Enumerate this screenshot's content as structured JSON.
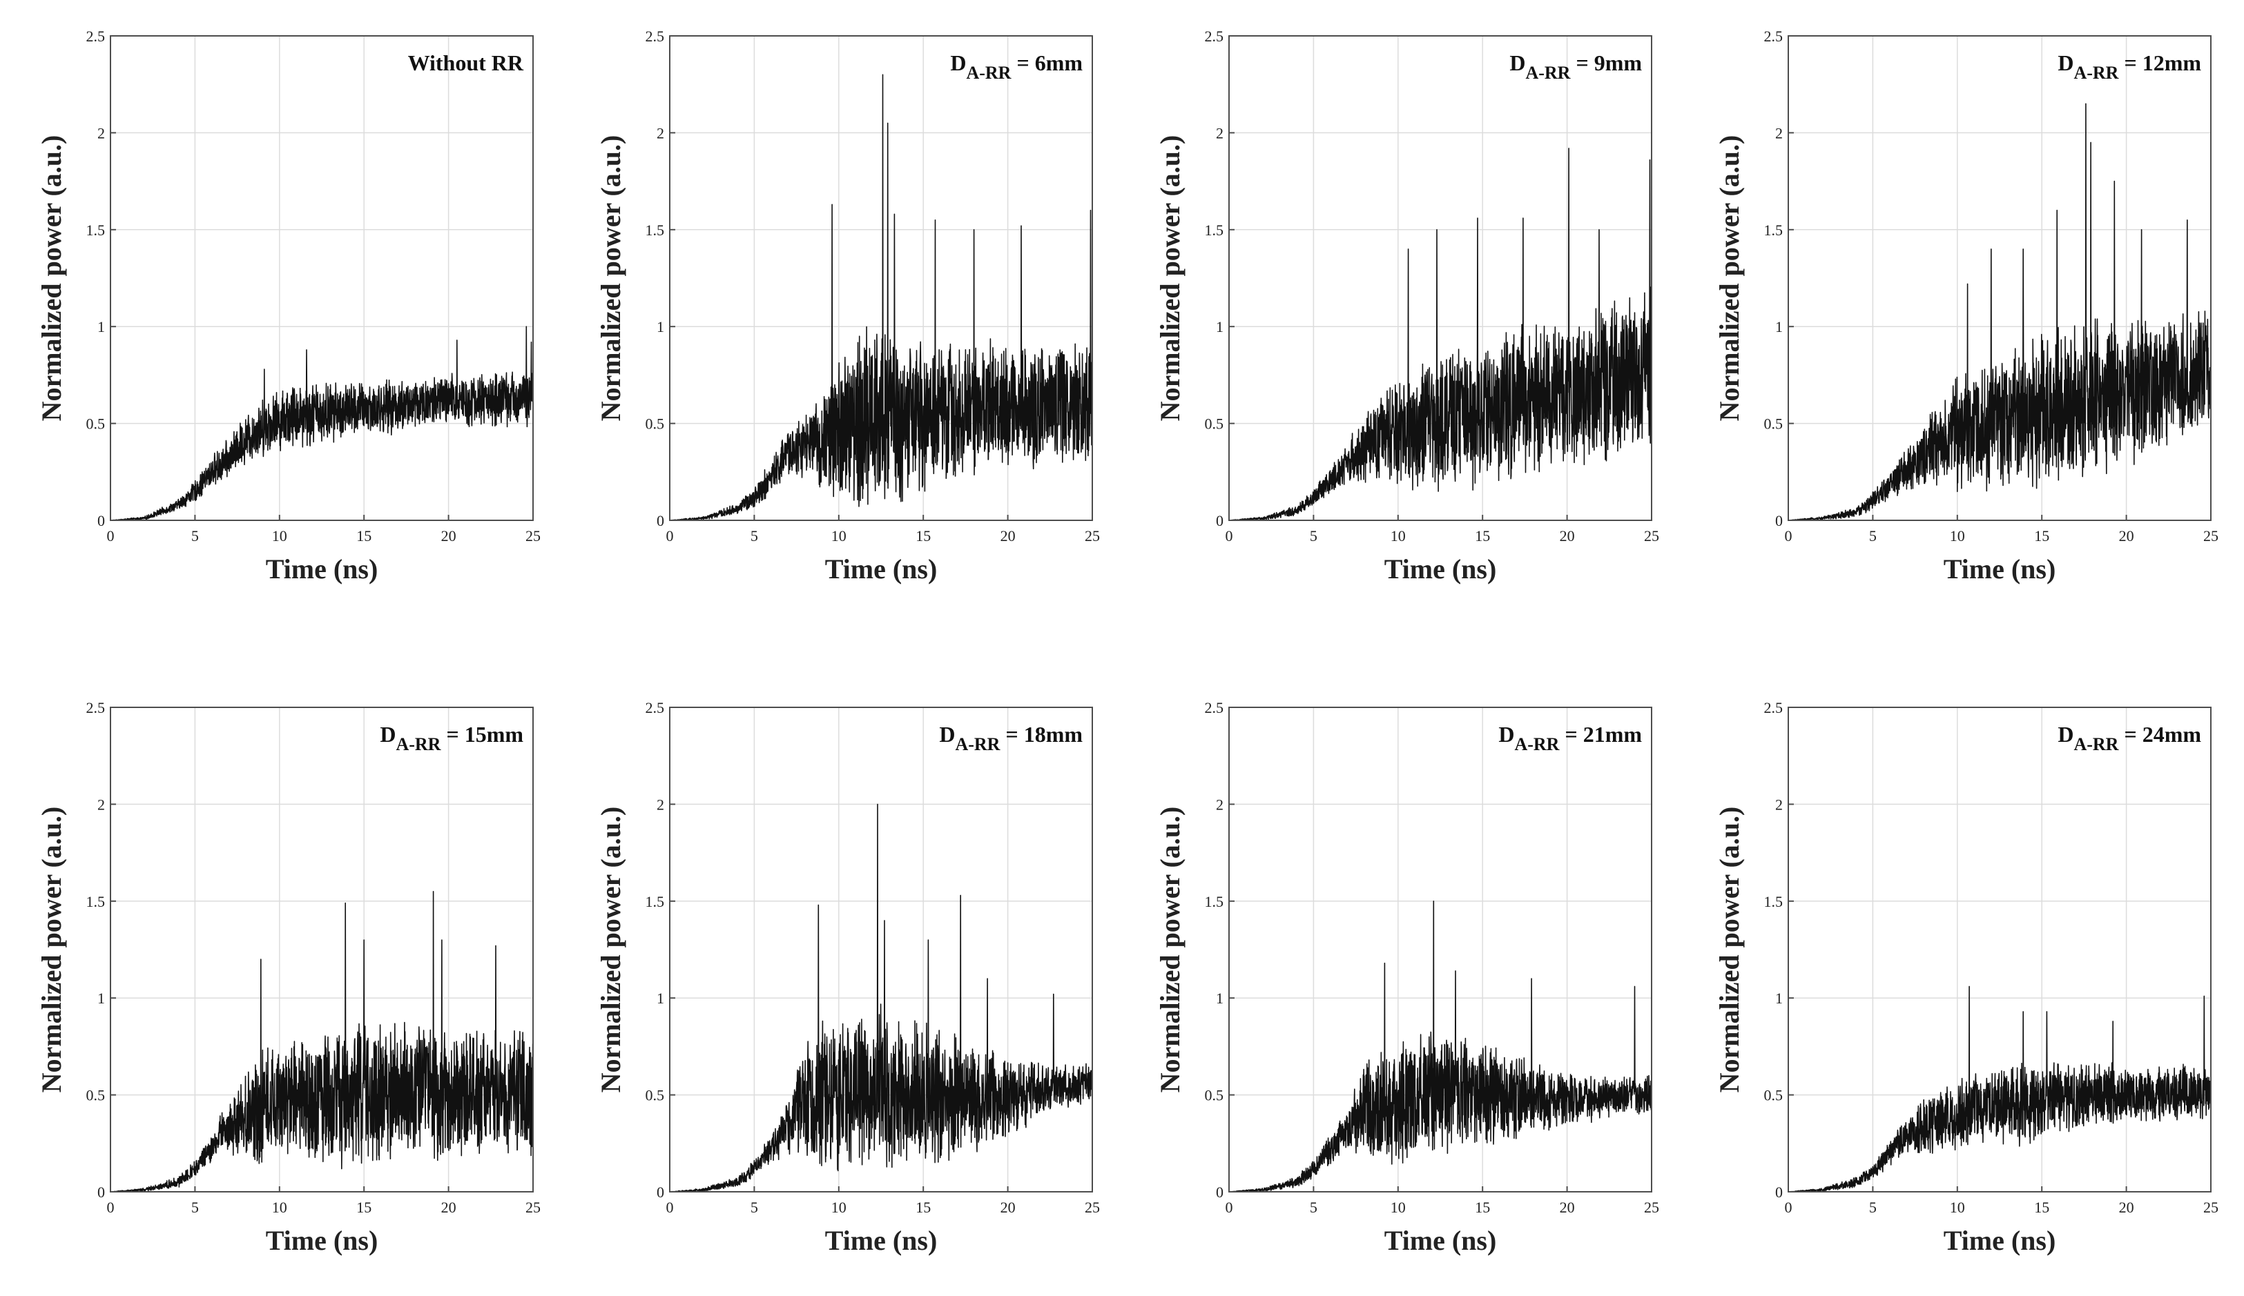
{
  "figure": {
    "panel_count": 8,
    "rows": 2,
    "cols": 4
  },
  "chart_data": [
    {
      "type": "line",
      "id": "p1",
      "label_main": "Without RR",
      "label_sub": "",
      "label_suffix": "",
      "xlabel": "Time (ns)",
      "ylabel": "Normalized power (a.u.)",
      "xlim": [
        0,
        25
      ],
      "ylim": [
        0,
        2.5
      ],
      "xticks": [
        0,
        5,
        10,
        15,
        20,
        25
      ],
      "yticks": [
        0,
        0.5,
        1,
        1.5,
        2,
        2.5
      ],
      "ytick_labels": [
        "0",
        "0.5",
        "1",
        "1.5",
        "2",
        "2.5"
      ],
      "series": [
        {
          "name": "Normalized power",
          "envelope": {
            "t": [
              0,
              2,
              4,
              5,
              6,
              7,
              8,
              9,
              10,
              11,
              12,
              14,
              16,
              18,
              20,
              22,
              24,
              25
            ],
            "mean": [
              0,
              0.01,
              0.08,
              0.15,
              0.25,
              0.32,
              0.42,
              0.48,
              0.52,
              0.55,
              0.55,
              0.57,
              0.58,
              0.6,
              0.62,
              0.62,
              0.63,
              0.63
            ],
            "spread": [
              0,
              0.01,
              0.03,
              0.06,
              0.09,
              0.11,
              0.14,
              0.16,
              0.17,
              0.19,
              0.18,
              0.16,
              0.15,
              0.15,
              0.15,
              0.15,
              0.16,
              0.16
            ]
          },
          "peaks": [
            [
              9.1,
              0.78
            ],
            [
              11.6,
              0.88
            ],
            [
              20.5,
              0.93
            ],
            [
              24.6,
              1.0
            ],
            [
              24.9,
              0.92
            ]
          ]
        }
      ]
    },
    {
      "type": "line",
      "id": "p2",
      "label_main": "D",
      "label_sub": "A-RR",
      "label_suffix": " = 6mm",
      "xlabel": "Time (ns)",
      "ylabel": "Normalized power (a.u.)",
      "xlim": [
        0,
        25
      ],
      "ylim": [
        0,
        2.5
      ],
      "xticks": [
        0,
        5,
        10,
        15,
        20,
        25
      ],
      "yticks": [
        0,
        0.5,
        1,
        1.5,
        2,
        2.5
      ],
      "ytick_labels": [
        "0",
        "0.5",
        "1",
        "1.5",
        "2",
        "2.5"
      ],
      "series": [
        {
          "name": "Normalized power",
          "envelope": {
            "t": [
              0,
              2,
              4,
              5,
              6,
              7,
              8,
              9,
              10,
              12,
              14,
              16,
              18,
              20,
              22,
              24,
              25
            ],
            "mean": [
              0,
              0.01,
              0.06,
              0.12,
              0.22,
              0.35,
              0.38,
              0.4,
              0.45,
              0.55,
              0.5,
              0.55,
              0.58,
              0.6,
              0.6,
              0.62,
              0.65
            ],
            "spread": [
              0,
              0.01,
              0.03,
              0.06,
              0.1,
              0.14,
              0.18,
              0.25,
              0.45,
              0.55,
              0.45,
              0.4,
              0.38,
              0.36,
              0.35,
              0.36,
              0.38
            ]
          },
          "peaks": [
            [
              9.6,
              1.63
            ],
            [
              12.6,
              2.3
            ],
            [
              12.9,
              2.05
            ],
            [
              13.3,
              1.58
            ],
            [
              15.7,
              1.55
            ],
            [
              18.0,
              1.5
            ],
            [
              20.8,
              1.52
            ],
            [
              24.9,
              1.6
            ]
          ]
        }
      ]
    },
    {
      "type": "line",
      "id": "p3",
      "label_main": "D",
      "label_sub": "A-RR",
      "label_suffix": " = 9mm",
      "xlabel": "Time (ns)",
      "ylabel": "Normalized power (a.u.)",
      "xlim": [
        0,
        25
      ],
      "ylim": [
        0,
        2.5
      ],
      "xticks": [
        0,
        5,
        10,
        15,
        20,
        25
      ],
      "yticks": [
        0,
        0.5,
        1,
        1.5,
        2,
        2.5
      ],
      "ytick_labels": [
        "0",
        "0.5",
        "1",
        "1.5",
        "2",
        "2.5"
      ],
      "series": [
        {
          "name": "Normalized power",
          "envelope": {
            "t": [
              0,
              2,
              4,
              5,
              6,
              7,
              8,
              9,
              10,
              12,
              14,
              16,
              18,
              20,
              22,
              24,
              25
            ],
            "mean": [
              0,
              0.01,
              0.05,
              0.12,
              0.2,
              0.3,
              0.36,
              0.42,
              0.45,
              0.5,
              0.55,
              0.58,
              0.62,
              0.66,
              0.7,
              0.75,
              0.8
            ],
            "spread": [
              0,
              0.01,
              0.03,
              0.05,
              0.08,
              0.12,
              0.18,
              0.25,
              0.32,
              0.38,
              0.4,
              0.42,
              0.42,
              0.42,
              0.42,
              0.44,
              0.46
            ]
          },
          "peaks": [
            [
              10.6,
              1.4
            ],
            [
              12.3,
              1.5
            ],
            [
              14.7,
              1.56
            ],
            [
              17.4,
              1.56
            ],
            [
              20.1,
              1.92
            ],
            [
              21.9,
              1.5
            ],
            [
              24.9,
              1.86
            ]
          ]
        }
      ]
    },
    {
      "type": "line",
      "id": "p4",
      "label_main": "D",
      "label_sub": "A-RR",
      "label_suffix": " = 12mm",
      "xlabel": "Time (ns)",
      "ylabel": "Normalized power (a.u.)",
      "xlim": [
        0,
        25
      ],
      "ylim": [
        0,
        2.5
      ],
      "xticks": [
        0,
        5,
        10,
        15,
        20,
        25
      ],
      "yticks": [
        0,
        0.5,
        1,
        1.5,
        2,
        2.5
      ],
      "ytick_labels": [
        "0",
        "0.5",
        "1",
        "1.5",
        "2",
        "2.5"
      ],
      "series": [
        {
          "name": "Normalized power",
          "envelope": {
            "t": [
              0,
              2,
              4,
              5,
              6,
              7,
              8,
              9,
              10,
              12,
              14,
              16,
              18,
              20,
              22,
              24,
              25
            ],
            "mean": [
              0,
              0.01,
              0.04,
              0.1,
              0.18,
              0.26,
              0.33,
              0.4,
              0.45,
              0.5,
              0.55,
              0.58,
              0.62,
              0.66,
              0.7,
              0.74,
              0.78
            ],
            "spread": [
              0,
              0.01,
              0.03,
              0.05,
              0.08,
              0.12,
              0.18,
              0.25,
              0.32,
              0.38,
              0.42,
              0.44,
              0.44,
              0.4,
              0.38,
              0.36,
              0.36
            ]
          },
          "peaks": [
            [
              10.6,
              1.22
            ],
            [
              12.0,
              1.4
            ],
            [
              13.9,
              1.4
            ],
            [
              15.9,
              1.6
            ],
            [
              17.6,
              2.15
            ],
            [
              17.9,
              1.95
            ],
            [
              19.3,
              1.75
            ],
            [
              20.9,
              1.5
            ],
            [
              23.6,
              1.55
            ]
          ]
        }
      ]
    },
    {
      "type": "line",
      "id": "p5",
      "label_main": "D",
      "label_sub": "A-RR",
      "label_suffix": " = 15mm",
      "xlabel": "Time (ns)",
      "ylabel": "Normalized power (a.u.)",
      "xlim": [
        0,
        25
      ],
      "ylim": [
        0,
        2.5
      ],
      "xticks": [
        0,
        5,
        10,
        15,
        20,
        25
      ],
      "yticks": [
        0,
        0.5,
        1,
        1.5,
        2,
        2.5
      ],
      "ytick_labels": [
        "0",
        "0.5",
        "1",
        "1.5",
        "2",
        "2.5"
      ],
      "series": [
        {
          "name": "Normalized power",
          "envelope": {
            "t": [
              0,
              2,
              4,
              5,
              6,
              6.5,
              8,
              9,
              10,
              12,
              14,
              16,
              18,
              20,
              22,
              24,
              25
            ],
            "mean": [
              0,
              0.01,
              0.05,
              0.12,
              0.22,
              0.3,
              0.38,
              0.45,
              0.45,
              0.48,
              0.5,
              0.5,
              0.52,
              0.5,
              0.5,
              0.5,
              0.5
            ],
            "spread": [
              0,
              0.01,
              0.03,
              0.05,
              0.08,
              0.1,
              0.25,
              0.35,
              0.3,
              0.35,
              0.42,
              0.38,
              0.38,
              0.38,
              0.36,
              0.36,
              0.36
            ]
          },
          "peaks": [
            [
              8.9,
              1.2
            ],
            [
              13.9,
              1.49
            ],
            [
              15.0,
              1.3
            ],
            [
              19.1,
              1.55
            ],
            [
              19.6,
              1.3
            ],
            [
              22.8,
              1.27
            ]
          ]
        }
      ]
    },
    {
      "type": "line",
      "id": "p6",
      "label_main": "D",
      "label_sub": "A-RR",
      "label_suffix": " = 18mm",
      "xlabel": "Time (ns)",
      "ylabel": "Normalized power (a.u.)",
      "xlim": [
        0,
        25
      ],
      "ylim": [
        0,
        2.5
      ],
      "xticks": [
        0,
        5,
        10,
        15,
        20,
        25
      ],
      "yticks": [
        0,
        0.5,
        1,
        1.5,
        2,
        2.5
      ],
      "ytick_labels": [
        "0",
        "0.5",
        "1",
        "1.5",
        "2",
        "2.5"
      ],
      "series": [
        {
          "name": "Normalized power",
          "envelope": {
            "t": [
              0,
              2,
              4,
              5,
              6,
              7,
              8,
              9,
              10,
              12,
              14,
              16,
              18,
              20,
              22,
              24,
              25
            ],
            "mean": [
              0,
              0.01,
              0.05,
              0.12,
              0.22,
              0.34,
              0.45,
              0.5,
              0.5,
              0.55,
              0.5,
              0.5,
              0.48,
              0.5,
              0.52,
              0.55,
              0.55
            ],
            "spread": [
              0,
              0.01,
              0.03,
              0.05,
              0.08,
              0.15,
              0.32,
              0.45,
              0.42,
              0.45,
              0.4,
              0.38,
              0.3,
              0.22,
              0.15,
              0.12,
              0.12
            ]
          },
          "peaks": [
            [
              8.8,
              1.48
            ],
            [
              12.3,
              2.0
            ],
            [
              12.7,
              1.4
            ],
            [
              15.3,
              1.3
            ],
            [
              17.2,
              1.53
            ],
            [
              18.8,
              1.1
            ],
            [
              22.7,
              1.02
            ]
          ]
        }
      ]
    },
    {
      "type": "line",
      "id": "p7",
      "label_main": "D",
      "label_sub": "A-RR",
      "label_suffix": " = 21mm",
      "xlabel": "Time (ns)",
      "ylabel": "Normalized power (a.u.)",
      "xlim": [
        0,
        25
      ],
      "ylim": [
        0,
        2.5
      ],
      "xticks": [
        0,
        5,
        10,
        15,
        20,
        25
      ],
      "yticks": [
        0,
        0.5,
        1,
        1.5,
        2,
        2.5
      ],
      "ytick_labels": [
        "0",
        "0.5",
        "1",
        "1.5",
        "2",
        "2.5"
      ],
      "series": [
        {
          "name": "Normalized power",
          "envelope": {
            "t": [
              0,
              2,
              4,
              5,
              6,
              7,
              8,
              9,
              10,
              12,
              14,
              16,
              18,
              20,
              22,
              24,
              25
            ],
            "mean": [
              0,
              0.01,
              0.05,
              0.12,
              0.22,
              0.32,
              0.42,
              0.45,
              0.45,
              0.5,
              0.5,
              0.5,
              0.48,
              0.48,
              0.48,
              0.5,
              0.5
            ],
            "spread": [
              0,
              0.01,
              0.03,
              0.05,
              0.08,
              0.12,
              0.25,
              0.35,
              0.32,
              0.35,
              0.32,
              0.26,
              0.22,
              0.15,
              0.12,
              0.11,
              0.11
            ]
          },
          "peaks": [
            [
              9.2,
              1.18
            ],
            [
              12.1,
              1.5
            ],
            [
              13.4,
              1.14
            ],
            [
              17.9,
              1.1
            ],
            [
              24.0,
              1.06
            ]
          ]
        }
      ]
    },
    {
      "type": "line",
      "id": "p8",
      "label_main": "D",
      "label_sub": "A-RR",
      "label_suffix": " = 24mm",
      "xlabel": "Time (ns)",
      "ylabel": "Normalized power (a.u.)",
      "xlim": [
        0,
        25
      ],
      "ylim": [
        0,
        2.5
      ],
      "xticks": [
        0,
        5,
        10,
        15,
        20,
        25
      ],
      "yticks": [
        0,
        0.5,
        1,
        1.5,
        2,
        2.5
      ],
      "ytick_labels": [
        "0",
        "0.5",
        "1",
        "1.5",
        "2",
        "2.5"
      ],
      "series": [
        {
          "name": "Normalized power",
          "envelope": {
            "t": [
              0,
              2,
              4,
              5,
              6,
              7,
              8,
              9,
              10,
              12,
              14,
              16,
              18,
              20,
              22,
              24,
              25
            ],
            "mean": [
              0,
              0.01,
              0.05,
              0.1,
              0.2,
              0.3,
              0.34,
              0.36,
              0.4,
              0.44,
              0.45,
              0.48,
              0.5,
              0.5,
              0.5,
              0.52,
              0.52
            ],
            "spread": [
              0,
              0.01,
              0.03,
              0.04,
              0.07,
              0.12,
              0.15,
              0.17,
              0.2,
              0.22,
              0.22,
              0.2,
              0.18,
              0.16,
              0.15,
              0.15,
              0.15
            ]
          },
          "peaks": [
            [
              10.7,
              1.06
            ],
            [
              13.9,
              0.93
            ],
            [
              15.3,
              0.93
            ],
            [
              19.2,
              0.88
            ],
            [
              24.6,
              1.01
            ]
          ]
        }
      ]
    }
  ]
}
